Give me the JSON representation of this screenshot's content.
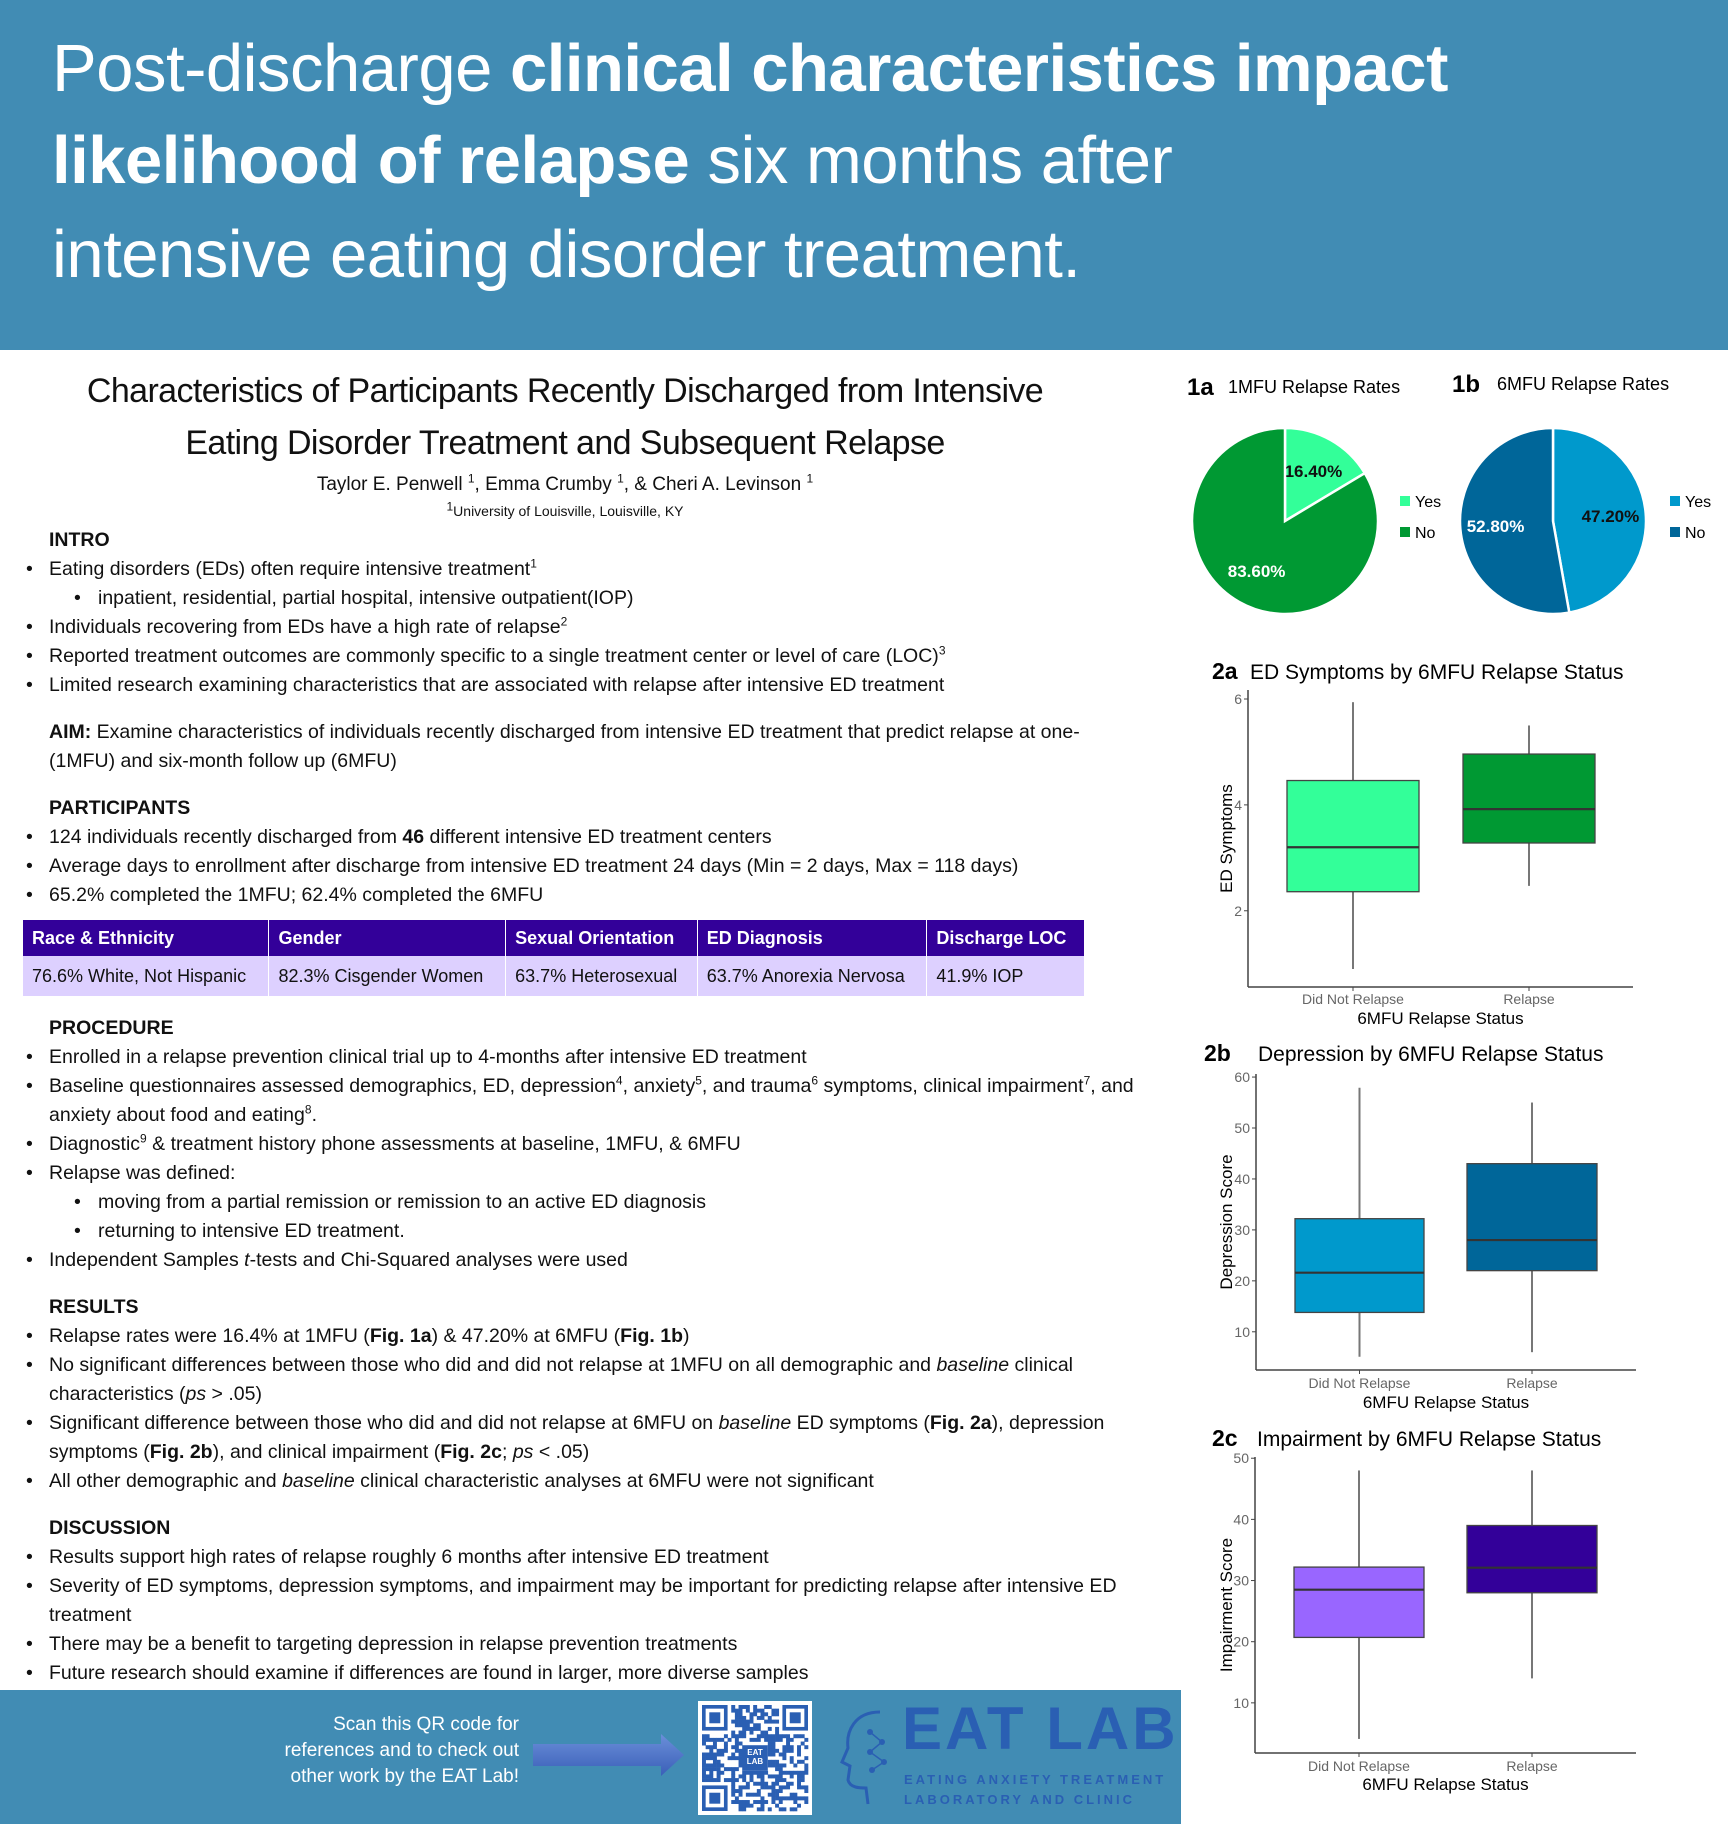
{
  "header": {
    "line1": [
      {
        "t": "Post-discharge "
      },
      {
        "t": "clinical characteristics impact",
        "b": true
      }
    ],
    "line2": [
      {
        "t": "likelihood of relapse",
        "b": true
      },
      {
        "t": " six months after"
      }
    ],
    "line3": [
      {
        "t": "intensive eating disorder treatment."
      }
    ],
    "background": "#418cb4"
  },
  "poster": {
    "title_line1": "Characteristics of Participants Recently Discharged from Intensive",
    "title_line2": "Eating Disorder Treatment and Subsequent Relapse",
    "authors": [
      {
        "t": "Taylor E. Penwell "
      },
      {
        "t": "1",
        "sup": true
      },
      {
        "t": ", Emma Crumby "
      },
      {
        "t": "1",
        "sup": true
      },
      {
        "t": ", & Cheri A. Levinson "
      },
      {
        "t": "1",
        "sup": true
      }
    ],
    "affiliation": [
      {
        "t": "1",
        "sup": true
      },
      {
        "t": "University of Louisville, Louisville, KY"
      }
    ]
  },
  "sections": [
    {
      "heading": "INTRO",
      "items": [
        {
          "segs": [
            {
              "t": "Eating disorders (EDs) often require intensive treatment"
            },
            {
              "t": "1",
              "sup": true
            }
          ]
        },
        {
          "sub": true,
          "segs": [
            {
              "t": "inpatient, residential, partial hospital, intensive outpatient(IOP)"
            }
          ]
        },
        {
          "segs": [
            {
              "t": "Individuals recovering from EDs have a high rate of relapse"
            },
            {
              "t": "2",
              "sup": true
            }
          ]
        },
        {
          "segs": [
            {
              "t": "Reported treatment outcomes are commonly specific to a single treatment center or level of care (LOC)"
            },
            {
              "t": "3",
              "sup": true
            }
          ]
        },
        {
          "segs": [
            {
              "t": "Limited research examining characteristics that are associated with relapse after intensive ED treatment"
            }
          ]
        }
      ]
    },
    {
      "heading": "",
      "para": [
        {
          "t": "AIM:",
          "b": true
        },
        {
          "t": " Examine characteristics of individuals recently discharged from intensive ED treatment that predict relapse at one- (1MFU) and six-month follow up (6MFU)"
        }
      ],
      "items": []
    },
    {
      "heading": "PARTICIPANTS",
      "items": [
        {
          "segs": [
            {
              "t": "124 individuals recently discharged from "
            },
            {
              "t": "46",
              "b": true
            },
            {
              "t": " different intensive ED treatment centers"
            }
          ]
        },
        {
          "segs": [
            {
              "t": "Average days to enrollment after discharge from intensive ED treatment 24 days (Min = 2 days, Max = 118 days)"
            }
          ]
        },
        {
          "segs": [
            {
              "t": "65.2% completed the 1MFU; 62.4% completed the 6MFU"
            }
          ]
        }
      ],
      "table": {
        "headers": [
          "Race & Ethnicity",
          "Gender",
          "Sexual Orientation",
          "ED Diagnosis",
          "Discharge LOC"
        ],
        "values": [
          "76.6% White, Not Hispanic",
          "82.3% Cisgender Women",
          "63.7% Heterosexual",
          "63.7% Anorexia Nervosa",
          "41.9% IOP"
        ]
      }
    },
    {
      "heading": "PROCEDURE",
      "items": [
        {
          "segs": [
            {
              "t": "Enrolled in a relapse prevention clinical trial up to 4-months after intensive ED treatment"
            }
          ]
        },
        {
          "segs": [
            {
              "t": "Baseline questionnaires assessed demographics, ED, depression"
            },
            {
              "t": "4",
              "sup": true
            },
            {
              "t": ", anxiety"
            },
            {
              "t": "5",
              "sup": true
            },
            {
              "t": ", and trauma"
            },
            {
              "t": "6",
              "sup": true
            },
            {
              "t": " symptoms, clinical impairment"
            },
            {
              "t": "7",
              "sup": true
            },
            {
              "t": ", and anxiety about food and eating"
            },
            {
              "t": "8",
              "sup": true
            },
            {
              "t": "."
            }
          ]
        },
        {
          "segs": [
            {
              "t": "Diagnostic"
            },
            {
              "t": "9",
              "sup": true
            },
            {
              "t": " & treatment history phone assessments at baseline, 1MFU, & 6MFU"
            }
          ]
        },
        {
          "segs": [
            {
              "t": "Relapse was defined:"
            }
          ]
        },
        {
          "sub": true,
          "segs": [
            {
              "t": "moving from a partial remission or remission to an active ED diagnosis"
            }
          ]
        },
        {
          "sub": true,
          "segs": [
            {
              "t": "returning to intensive ED treatment."
            }
          ]
        },
        {
          "segs": [
            {
              "t": "Independent Samples "
            },
            {
              "t": "t",
              "i": true
            },
            {
              "t": "-tests and Chi-Squared analyses were used"
            }
          ]
        }
      ]
    },
    {
      "heading": "RESULTS",
      "items": [
        {
          "segs": [
            {
              "t": "Relapse rates were 16.4% at 1MFU ("
            },
            {
              "t": "Fig. 1a",
              "b": true
            },
            {
              "t": ") & 47.20% at 6MFU ("
            },
            {
              "t": "Fig. 1b",
              "b": true
            },
            {
              "t": ")"
            }
          ]
        },
        {
          "segs": [
            {
              "t": "No significant differences between those who did and did not relapse at 1MFU on all demographic and "
            },
            {
              "t": "baseline",
              "i": true
            },
            {
              "t": " clinical characteristics ("
            },
            {
              "t": "ps",
              "i": true
            },
            {
              "t": " > .05)"
            }
          ]
        },
        {
          "segs": [
            {
              "t": "Significant difference between those who did and did not relapse at 6MFU on "
            },
            {
              "t": "baseline",
              "i": true
            },
            {
              "t": " ED symptoms ("
            },
            {
              "t": "Fig. 2a",
              "b": true
            },
            {
              "t": "), depression symptoms ("
            },
            {
              "t": "Fig. 2b",
              "b": true
            },
            {
              "t": "), and clinical impairment ("
            },
            {
              "t": "Fig. 2c",
              "b": true
            },
            {
              "t": "; "
            },
            {
              "t": "ps",
              "i": true
            },
            {
              "t": " < .05)"
            }
          ]
        },
        {
          "segs": [
            {
              "t": "All other demographic and "
            },
            {
              "t": "baseline",
              "i": true
            },
            {
              "t": " clinical characteristic analyses at 6MFU were not significant"
            }
          ]
        }
      ]
    },
    {
      "heading": "DISCUSSION",
      "items": [
        {
          "segs": [
            {
              "t": "Results support high rates of relapse roughly 6 months after intensive ED treatment"
            }
          ]
        },
        {
          "segs": [
            {
              "t": "Severity of ED symptoms, depression symptoms, and impairment may be important for predicting relapse after intensive ED treatment"
            }
          ]
        },
        {
          "segs": [
            {
              "t": "There may be a benefit to targeting depression in relapse prevention treatments"
            }
          ]
        },
        {
          "segs": [
            {
              "t": "Future research should examine if differences are found in larger, more diverse samples"
            }
          ]
        }
      ]
    }
  ],
  "footer": {
    "qr_text": [
      "Scan this QR code for",
      "references  and to check out",
      "other work by the EAT Lab!"
    ],
    "qr_badge": [
      "EAT",
      "LAB"
    ],
    "logo_main": "EAT LAB",
    "logo_sub": [
      "EATING ANXIETY TREATMENT",
      "LABORATORY AND CLINIC"
    ],
    "arrow_icon": "right-arrow-icon",
    "logo_color": "#2a5fb3"
  },
  "chart_data": [
    {
      "id": "1a",
      "type": "pie",
      "label": "1a",
      "title": "1MFU Relapse Rates",
      "legend": "right",
      "slices": [
        {
          "name": "Yes",
          "value": 16.4,
          "label": "16.40%",
          "color": "#33ff99"
        },
        {
          "name": "No",
          "value": 83.6,
          "label": "83.60%",
          "color": "#009933"
        }
      ]
    },
    {
      "id": "1b",
      "type": "pie",
      "label": "1b",
      "title": "6MFU Relapse Rates",
      "legend": "right",
      "slices": [
        {
          "name": "Yes",
          "value": 47.2,
          "label": "47.20%",
          "color": "#0099cc"
        },
        {
          "name": "No",
          "value": 52.8,
          "label": "52.80%",
          "color": "#006699"
        }
      ]
    },
    {
      "id": "2a",
      "type": "box",
      "label": "2a",
      "title": "ED Symptoms by 6MFU Relapse Status",
      "xlabel": "6MFU Relapse Status",
      "ylabel": "ED Symptoms",
      "ylim": [
        0.56,
        6.17
      ],
      "yticks": [
        2,
        4,
        6
      ],
      "grid": false,
      "categories": [
        "Did Not Relapse",
        "Relapse"
      ],
      "boxes": [
        {
          "min": 0.9,
          "q1": 2.36,
          "median": 3.2,
          "q3": 4.46,
          "max": 5.94,
          "color": "#33ff99"
        },
        {
          "min": 2.47,
          "q1": 3.28,
          "median": 3.92,
          "q3": 4.96,
          "max": 5.5,
          "color": "#009933"
        }
      ]
    },
    {
      "id": "2b",
      "type": "box",
      "label": "2b",
      "title": "Depression by 6MFU Relapse Status",
      "xlabel": "6MFU Relapse Status",
      "ylabel": "Depression Score",
      "ylim": [
        2.5,
        60.6
      ],
      "yticks": [
        10,
        20,
        30,
        40,
        50,
        60
      ],
      "grid": false,
      "categories": [
        "Did Not Relapse",
        "Relapse"
      ],
      "boxes": [
        {
          "min": 5.1,
          "q1": 13.8,
          "median": 21.6,
          "q3": 32.2,
          "max": 57.9,
          "color": "#0099cc"
        },
        {
          "min": 6,
          "q1": 22,
          "median": 28,
          "q3": 43,
          "max": 55,
          "color": "#006699"
        }
      ]
    },
    {
      "id": "2c",
      "type": "box",
      "label": "2c",
      "title": "Impairment by 6MFU Relapse Status",
      "xlabel": "6MFU Relapse Status",
      "ylabel": "Impairment Score",
      "ylim": [
        1.8,
        50.2
      ],
      "yticks": [
        10,
        20,
        30,
        40,
        50
      ],
      "grid": false,
      "categories": [
        "Did Not Relapse",
        "Relapse"
      ],
      "boxes": [
        {
          "min": 4.1,
          "q1": 20.7,
          "median": 28.5,
          "q3": 32.2,
          "max": 48,
          "color": "#9966ff"
        },
        {
          "min": 14,
          "q1": 28,
          "median": 32.1,
          "q3": 39,
          "max": 48,
          "color": "#330099"
        }
      ]
    }
  ]
}
